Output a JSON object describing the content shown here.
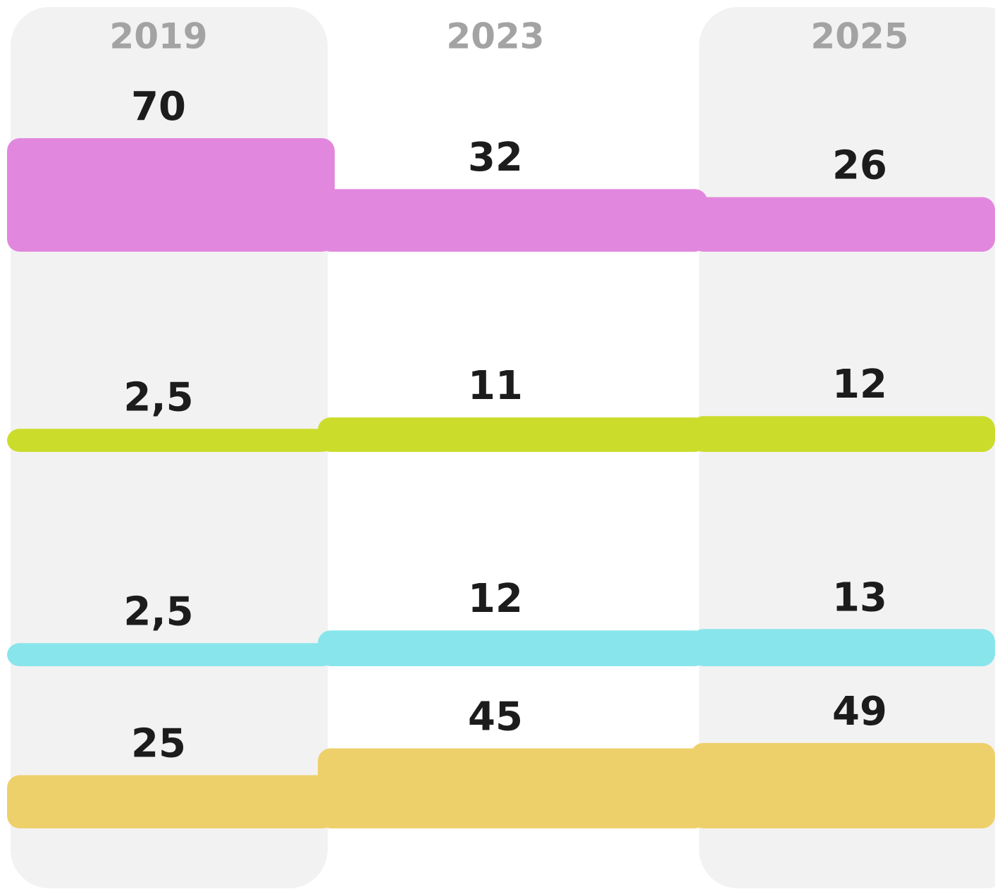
{
  "chart_data": {
    "type": "step-band",
    "categories": [
      "2019",
      "2023",
      "2025"
    ],
    "series": [
      {
        "color": "#e287de",
        "values": [
          70,
          32,
          26
        ]
      },
      {
        "color": "#cbdc2b",
        "values": [
          2.5,
          11,
          12
        ],
        "value_labels": [
          "2,5",
          "11",
          "12"
        ]
      },
      {
        "color": "#89e5ec",
        "values": [
          2.5,
          12,
          13
        ],
        "value_labels": [
          "2,5",
          "12",
          "13"
        ]
      },
      {
        "color": "#eed06b",
        "values": [
          25,
          45,
          49
        ]
      }
    ]
  }
}
